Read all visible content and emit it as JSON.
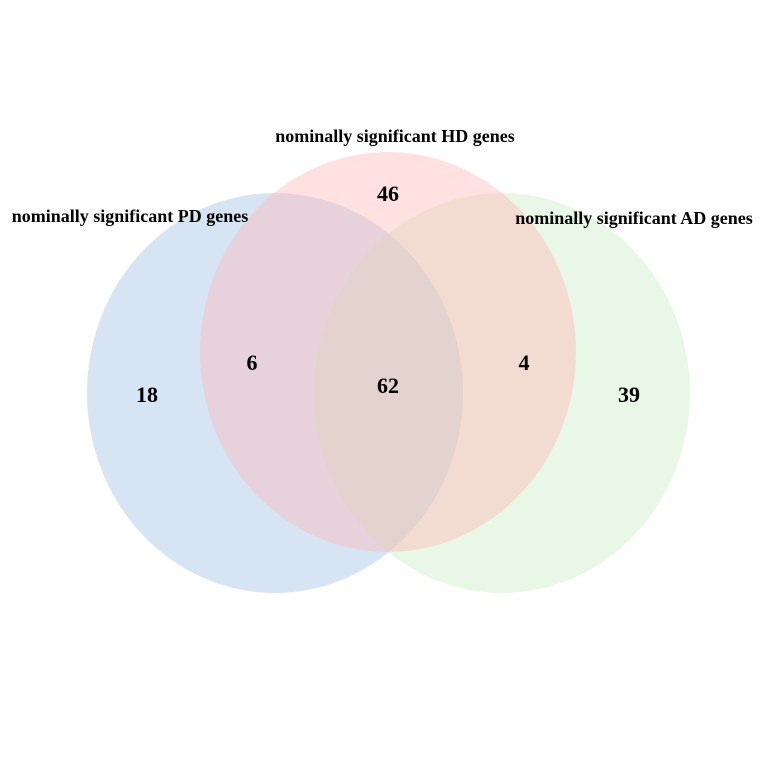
{
  "venn": {
    "sets": {
      "pd": {
        "label": "nominally significant  PD genes",
        "color": "#9bbbe0"
      },
      "hd": {
        "label": "nominally significant HD genes",
        "color": "#ffb3b3"
      },
      "ad": {
        "label": "nominally significant AD genes",
        "color": "#c8ecc3"
      }
    },
    "regions": {
      "pd_only": "18",
      "hd_only": "46",
      "ad_only": "39",
      "pd_hd": "6",
      "hd_ad": "4",
      "pd_hd_ad": "62"
    }
  }
}
